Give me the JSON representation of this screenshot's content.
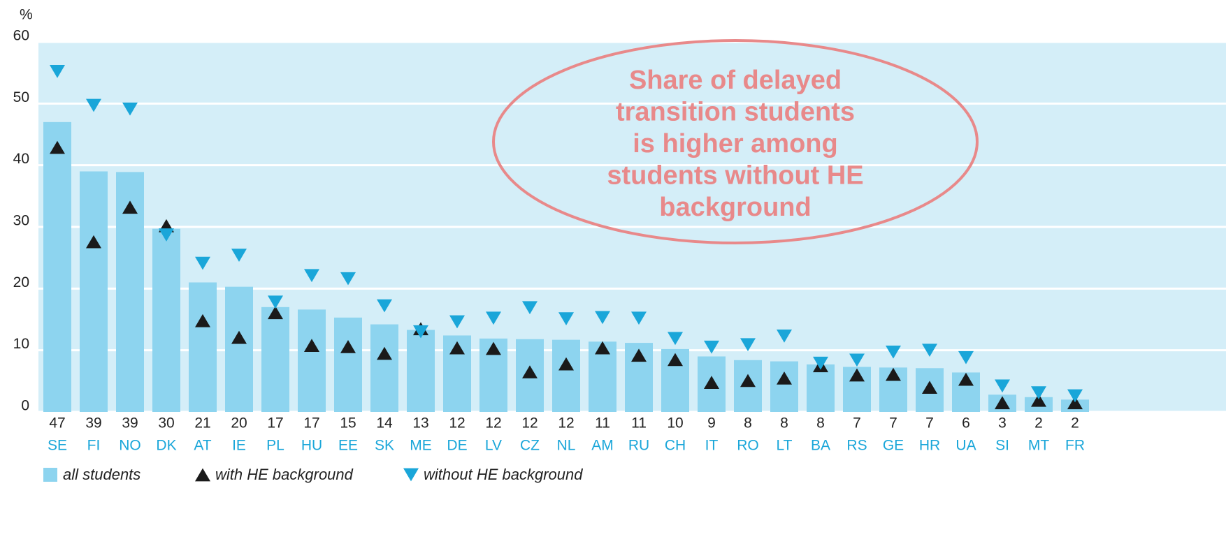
{
  "chart_data": {
    "type": "bar",
    "y_label": "%",
    "categories": [
      "SE",
      "FI",
      "NO",
      "DK",
      "AT",
      "IE",
      "PL",
      "HU",
      "EE",
      "SK",
      "ME",
      "DE",
      "LV",
      "CZ",
      "NL",
      "AM",
      "RU",
      "CH",
      "IT",
      "RO",
      "LT",
      "BA",
      "RS",
      "GE",
      "HR",
      "UA",
      "SI",
      "MT",
      "FR"
    ],
    "series": [
      {
        "name": "all students",
        "color": "#8dd4ef",
        "marker": "bar",
        "values": [
          47,
          39,
          38.9,
          29.7,
          21,
          20.3,
          17,
          16.6,
          15.3,
          14.2,
          13.3,
          12.4,
          11.9,
          11.8,
          11.7,
          11.4,
          11.2,
          10.2,
          9,
          8.4,
          8.2,
          7.7,
          7.3,
          7.2,
          7.1,
          6.4,
          2.8,
          2.4,
          2
        ],
        "value_labels": [
          "47",
          "39",
          "39",
          "30",
          "21",
          "20",
          "17",
          "17",
          "15",
          "14",
          "13",
          "12",
          "12",
          "12",
          "12",
          "11",
          "11",
          "10",
          "9",
          "8",
          "8",
          "8",
          "7",
          "7",
          "7",
          "6",
          "3",
          "2",
          "2"
        ]
      },
      {
        "name": "with HE background",
        "color": "#1a1a1a",
        "marker": "triangle-up",
        "values": [
          42.9,
          27.6,
          33.2,
          30.2,
          14.8,
          12.1,
          16.1,
          10.8,
          10.6,
          9.5,
          13.5,
          10.4,
          10.3,
          6.5,
          7.8,
          10.4,
          9.2,
          8.5,
          4.8,
          5.1,
          5.5,
          7.5,
          6,
          6.1,
          4,
          5.3,
          1.5,
          1.9,
          1.5
        ]
      },
      {
        "name": "without HE background",
        "color": "#1aa6d9",
        "marker": "triangle-down",
        "values": [
          55.2,
          49.7,
          49.1,
          28.7,
          24.1,
          25.4,
          17.8,
          22.1,
          21.6,
          17.2,
          13,
          14.6,
          15.2,
          16.9,
          15.1,
          15.3,
          15.2,
          11.9,
          10.5,
          10.9,
          12.3,
          7.9,
          8.4,
          9.7,
          10,
          8.8,
          4.2,
          3.1,
          2.6
        ]
      }
    ],
    "ylim": [
      0,
      60
    ],
    "yticks": [
      0,
      10,
      20,
      30,
      40,
      50,
      60
    ],
    "grid": true,
    "plot_background": "#d4eef8",
    "category_color": "#1aa6d9",
    "annotation": {
      "lines": [
        "Share of delayed",
        "transition students",
        "is higher among",
        "students without HE",
        "background"
      ],
      "color": "#e8898a"
    },
    "legend": "bottom-left"
  }
}
